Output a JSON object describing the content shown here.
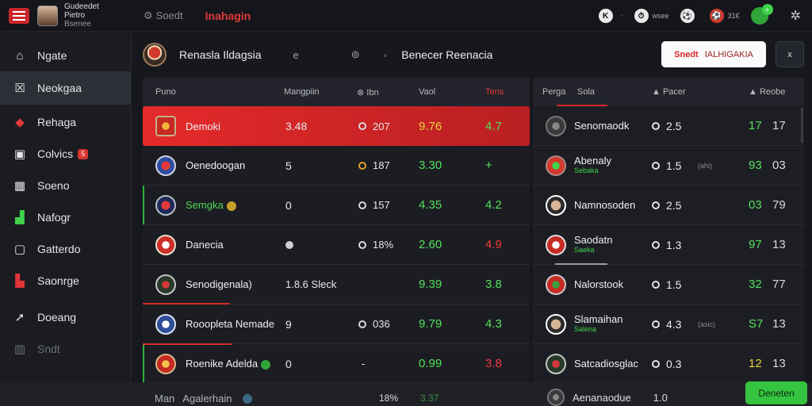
{
  "topbar": {
    "user_name": "Gudeedet Pietro",
    "user_sub": "Bsenee",
    "search_text": "Soedt",
    "title": "Inahagin",
    "right_items": [
      {
        "icon": "k-icon",
        "text": ""
      },
      {
        "icon": "stopwatch-icon",
        "text": "wsee"
      },
      {
        "icon": "ball-icon",
        "text": ""
      },
      {
        "icon": "ball-icon",
        "text": "31€"
      }
    ],
    "notif_count": "+"
  },
  "sidebar": {
    "items": [
      {
        "label": "Ngate",
        "icon": "home-icon"
      },
      {
        "label": "Neokgaa",
        "icon": "close-square-icon"
      },
      {
        "label": "Rehaga",
        "icon": "diamond-icon"
      },
      {
        "label": "Colvics",
        "icon": "monitor-icon",
        "badge": "5"
      },
      {
        "label": "Soeno",
        "icon": "calendar-icon"
      },
      {
        "label": "Nafogr",
        "icon": "chart-icon"
      },
      {
        "label": "Gatterdo",
        "icon": "tablet-icon"
      },
      {
        "label": "Saonrge",
        "icon": "trophy-icon"
      },
      {
        "label": "Doeang",
        "icon": "share-icon"
      },
      {
        "label": "Sndt",
        "icon": "bars-icon"
      }
    ]
  },
  "match_header": {
    "team1": "Renasla Ildagsia",
    "sym1": "e",
    "sym2": "",
    "sym3": "",
    "team2": "Benecer Reenacia",
    "bet_button_label": "Snedt",
    "bet_button_sub": "IALHIGAKIA",
    "close_label": "x"
  },
  "left_table": {
    "headers": [
      "Puno",
      "Mangpiin",
      "Ibn",
      "Vaol",
      "Tens"
    ],
    "rows": [
      {
        "name": "Demoki",
        "a": "3.48",
        "b": "207",
        "c": "9.76",
        "d": "4.7",
        "c_color": "yellow",
        "d_color": "green",
        "name_color": "white"
      },
      {
        "name": "Oenedoogan",
        "a": "5",
        "b": "187",
        "c": "3.30",
        "d": "+",
        "c_color": "green",
        "d_color": "green",
        "name_color": "white"
      },
      {
        "name": "Semgka",
        "a": "0",
        "b": "157",
        "c": "4.35",
        "d": "4.2",
        "c_color": "green",
        "d_color": "green",
        "name_color": "green"
      },
      {
        "name": "Danecia",
        "a": "",
        "b": "18%",
        "c": "2.60",
        "d": "4.9",
        "c_color": "green",
        "d_color": "red",
        "name_color": "white"
      },
      {
        "name": "Senodigenala)",
        "a": "1.8.6 Sleck",
        "b": "",
        "c": "9.39",
        "d": "3.8",
        "c_color": "green",
        "d_color": "green",
        "name_color": "white"
      },
      {
        "name": "Rooopleta Nemade",
        "a": "9",
        "b": "036",
        "c": "9.79",
        "d": "4.3",
        "c_color": "green",
        "d_color": "green",
        "name_color": "white"
      },
      {
        "name": "Roenike Adelda",
        "a": "0",
        "b": "-",
        "c": "0.99",
        "d": "3.8",
        "c_color": "green",
        "d_color": "red",
        "name_color": "white"
      }
    ],
    "footer": {
      "label": "Man",
      "name": "Agalerhain",
      "b": "18%",
      "c": "3.37"
    }
  },
  "right_table": {
    "headers": [
      "Perga",
      "Sola",
      "Pacer",
      "Reobe"
    ],
    "rows": [
      {
        "name": "Senomaodk",
        "sub": "",
        "val": "2.5",
        "mid": "",
        "a": "17",
        "b": "17"
      },
      {
        "name": "Abenaly",
        "sub": "Sebaka",
        "val": "1.5",
        "mid": "(ahi)",
        "a": "93",
        "b": "03"
      },
      {
        "name": "Namnosoden",
        "sub": "",
        "val": "2.5",
        "mid": "",
        "a": "03",
        "b": "79"
      },
      {
        "name": "Saodatn",
        "sub": "Saeka",
        "val": "1.3",
        "mid": "",
        "a": "97",
        "b": "13"
      },
      {
        "name": "Nalorstook",
        "sub": "",
        "val": "1.5",
        "mid": "",
        "a": "32",
        "b": "77"
      },
      {
        "name": "Slamaihan",
        "sub": "Salena",
        "val": "4.3",
        "mid": "(asic)",
        "a": "S7",
        "b": "13"
      },
      {
        "name": "Satcadiosglac",
        "sub": "",
        "val": "0.3",
        "mid": "",
        "a": "12",
        "b": "13"
      }
    ],
    "footer": {
      "name": "Aenanaodue",
      "val": "1.0"
    }
  },
  "green_button_label": "Deneten"
}
